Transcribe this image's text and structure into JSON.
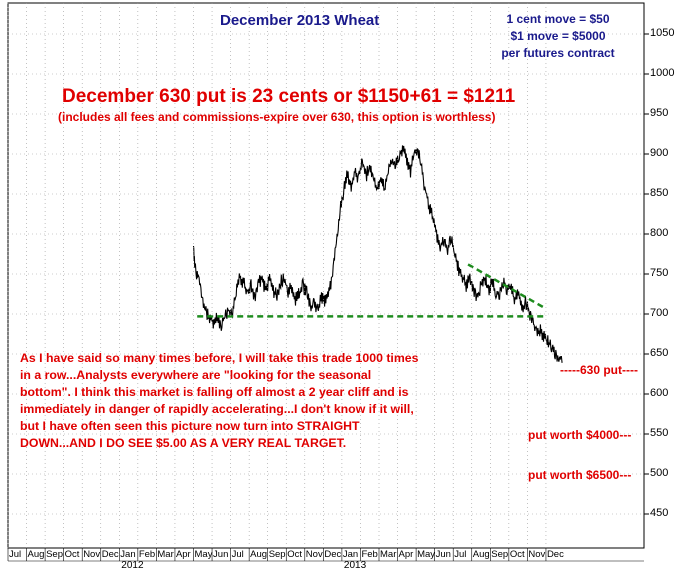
{
  "chart_data": {
    "type": "line",
    "title": "December 2013 Wheat",
    "notes": [
      "1 cent move = $50",
      "$1 move = $5000",
      "per futures contract"
    ],
    "headline": "December 630 put is 23 cents or $1150+61 = $1211",
    "subheadline": "(includes all fees and commissions-expire over 630, this option is worthless)",
    "commentary": "As I have said so many times before, I will take this trade 1000 times in a row...Analysts everywhere are \"looking for the seasonal bottom\". I think this market is falling off almost a 2 year cliff and is immediately in danger of rapidly accelerating...I don't know if it will, but I have often seen this picture now turn into ",
    "commentary_emph": "STRAIGHT DOWN...AND I DO SEE $5.00 AS A VERY REAL TARGET.",
    "annotations": {
      "put_630": "-----630 put----",
      "put_4000": "put worth $4000---",
      "put_6500": "put worth $6500---"
    },
    "y_ticks": [
      450,
      500,
      550,
      600,
      650,
      700,
      750,
      800,
      850,
      900,
      950,
      1000,
      1050
    ],
    "ylim": [
      410,
      1080
    ],
    "x_ticks": [
      "Jul",
      "Aug",
      "Sep",
      "Oct",
      "Nov",
      "Dec",
      "Jan",
      "Feb",
      "Mar",
      "Apr",
      "May",
      "Jun",
      "Jul",
      "Aug",
      "Sep",
      "Oct",
      "Nov",
      "Dec",
      "Jan",
      "Feb",
      "Mar",
      "Apr",
      "May",
      "Jun",
      "Jul",
      "Aug",
      "Sep",
      "Oct",
      "Nov",
      "Dec"
    ],
    "year_labels": [
      "2012",
      "2013"
    ],
    "support_level": 697,
    "series": [
      {
        "values": [
          [
            10.0,
            785
          ],
          [
            10.1,
            755
          ],
          [
            10.3,
            745
          ],
          [
            10.5,
            715
          ],
          [
            10.7,
            700
          ],
          [
            10.9,
            695
          ],
          [
            11.1,
            688
          ],
          [
            11.3,
            695
          ],
          [
            11.5,
            685
          ],
          [
            11.7,
            700
          ],
          [
            11.9,
            705
          ],
          [
            12.1,
            698
          ],
          [
            12.3,
            730
          ],
          [
            12.5,
            745
          ],
          [
            12.7,
            740
          ],
          [
            12.9,
            725
          ],
          [
            13.1,
            735
          ],
          [
            13.3,
            720
          ],
          [
            13.5,
            738
          ],
          [
            13.7,
            745
          ],
          [
            13.9,
            728
          ],
          [
            14.1,
            745
          ],
          [
            14.3,
            730
          ],
          [
            14.5,
            722
          ],
          [
            14.7,
            740
          ],
          [
            14.9,
            745
          ],
          [
            15.1,
            725
          ],
          [
            15.3,
            735
          ],
          [
            15.5,
            718
          ],
          [
            15.7,
            725
          ],
          [
            15.9,
            735
          ],
          [
            16.1,
            728
          ],
          [
            16.3,
            708
          ],
          [
            16.5,
            715
          ],
          [
            16.7,
            705
          ],
          [
            16.9,
            722
          ],
          [
            17.1,
            715
          ],
          [
            17.3,
            725
          ],
          [
            17.5,
            752
          ],
          [
            17.7,
            790
          ],
          [
            17.9,
            830
          ],
          [
            18.1,
            855
          ],
          [
            18.3,
            875
          ],
          [
            18.5,
            860
          ],
          [
            18.7,
            880
          ],
          [
            18.9,
            868
          ],
          [
            19.1,
            890
          ],
          [
            19.3,
            872
          ],
          [
            19.5,
            885
          ],
          [
            19.7,
            868
          ],
          [
            19.9,
            855
          ],
          [
            20.1,
            870
          ],
          [
            20.3,
            858
          ],
          [
            20.5,
            880
          ],
          [
            20.7,
            895
          ],
          [
            20.9,
            885
          ],
          [
            21.1,
            898
          ],
          [
            21.3,
            910
          ],
          [
            21.5,
            892
          ],
          [
            21.7,
            878
          ],
          [
            21.9,
            900
          ],
          [
            22.1,
            905
          ],
          [
            22.3,
            880
          ],
          [
            22.5,
            855
          ],
          [
            22.7,
            835
          ],
          [
            22.9,
            820
          ],
          [
            23.1,
            800
          ],
          [
            23.3,
            785
          ],
          [
            23.5,
            790
          ],
          [
            23.7,
            780
          ],
          [
            23.9,
            795
          ],
          [
            24.1,
            775
          ],
          [
            24.3,
            755
          ],
          [
            24.5,
            748
          ],
          [
            24.7,
            735
          ],
          [
            24.9,
            745
          ],
          [
            25.1,
            730
          ],
          [
            25.3,
            720
          ],
          [
            25.5,
            735
          ],
          [
            25.7,
            745
          ],
          [
            25.9,
            730
          ],
          [
            26.1,
            740
          ],
          [
            26.3,
            728
          ],
          [
            26.5,
            725
          ],
          [
            26.7,
            740
          ],
          [
            26.9,
            730
          ],
          [
            27.1,
            735
          ],
          [
            27.3,
            718
          ],
          [
            27.5,
            728
          ],
          [
            27.7,
            705
          ],
          [
            27.9,
            715
          ],
          [
            28.1,
            700
          ],
          [
            28.3,
            690
          ],
          [
            28.5,
            675
          ],
          [
            28.7,
            680
          ],
          [
            28.9,
            672
          ],
          [
            29.1,
            665
          ],
          [
            29.3,
            660
          ],
          [
            29.5,
            652
          ],
          [
            29.7,
            645
          ],
          [
            29.9,
            640
          ]
        ]
      }
    ],
    "colors": {
      "price": "#000000",
      "support": "#1e8c1e",
      "text_red": "#e00000",
      "text_blue": "#1a1a8c"
    }
  }
}
